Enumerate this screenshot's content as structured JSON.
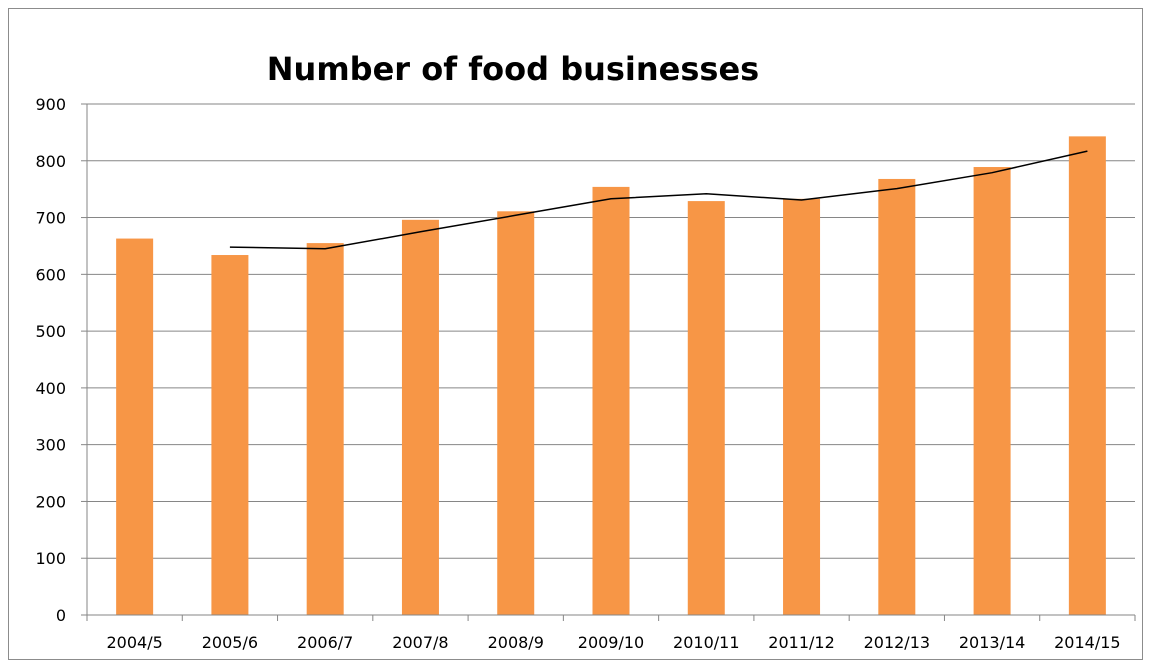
{
  "chart_data": {
    "type": "bar",
    "title": "Number of food businesses",
    "xlabel": "",
    "ylabel": "",
    "categories": [
      "2004/5",
      "2005/6",
      "2006/7",
      "2007/8",
      "2008/9",
      "2009/10",
      "2010/11",
      "2011/12",
      "2012/13",
      "2013/14",
      "2014/15"
    ],
    "series": [
      {
        "type": "bar",
        "color": "#F79646",
        "values": [
          663,
          634,
          655,
          696,
          711,
          754,
          729,
          733,
          768,
          789,
          843
        ]
      },
      {
        "type": "line",
        "color": "#000000",
        "values": [
          null,
          648,
          645,
          675,
          704,
          733,
          742,
          731,
          751,
          779,
          817
        ]
      }
    ],
    "ylim": [
      0,
      900
    ],
    "yticks": [
      0,
      100,
      200,
      300,
      400,
      500,
      600,
      700,
      800,
      900
    ],
    "grid": true,
    "legend": "none"
  }
}
